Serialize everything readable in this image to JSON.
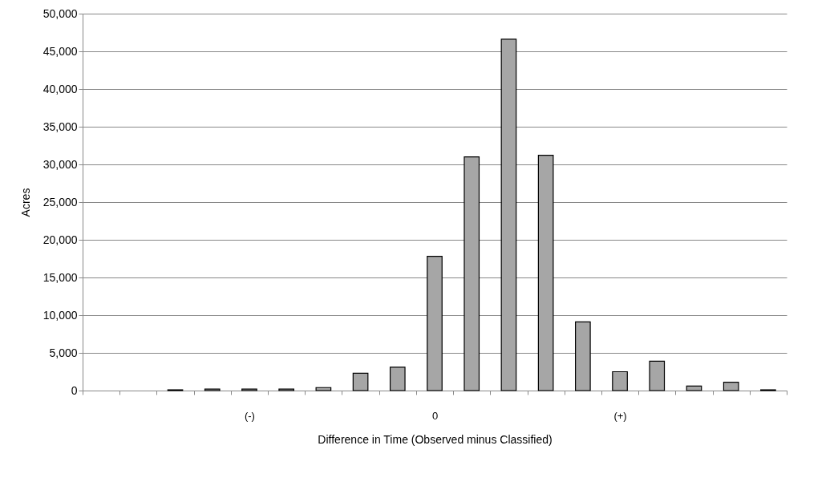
{
  "chart_data": {
    "type": "bar",
    "xlabel": "Difference in Time (Observed minus Classified)",
    "ylabel": "Acres",
    "categories": [
      null,
      null,
      null,
      null,
      "(-)",
      null,
      null,
      null,
      null,
      "0",
      null,
      null,
      null,
      null,
      "(+)",
      null,
      null,
      null,
      null
    ],
    "values": [
      null,
      null,
      100,
      200,
      200,
      200,
      400,
      2300,
      3100,
      17800,
      31000,
      46600,
      31200,
      9100,
      2500,
      3900,
      600,
      1100,
      100
    ],
    "color": "#a6a6a6",
    "ylim": [
      0,
      50000
    ],
    "yticks": [
      {
        "value": 0,
        "label": "0"
      },
      {
        "value": 5000,
        "label": "5,000"
      },
      {
        "value": 10000,
        "label": "10,000"
      },
      {
        "value": 15000,
        "label": "15,000"
      },
      {
        "value": 20000,
        "label": "20,000"
      },
      {
        "value": 25000,
        "label": "25,000"
      },
      {
        "value": 30000,
        "label": "30,000"
      },
      {
        "value": 35000,
        "label": "35,000"
      },
      {
        "value": 40000,
        "label": "40,000"
      },
      {
        "value": 45000,
        "label": "45,000"
      },
      {
        "value": 50000,
        "label": "50,000"
      }
    ],
    "grid": "y"
  }
}
